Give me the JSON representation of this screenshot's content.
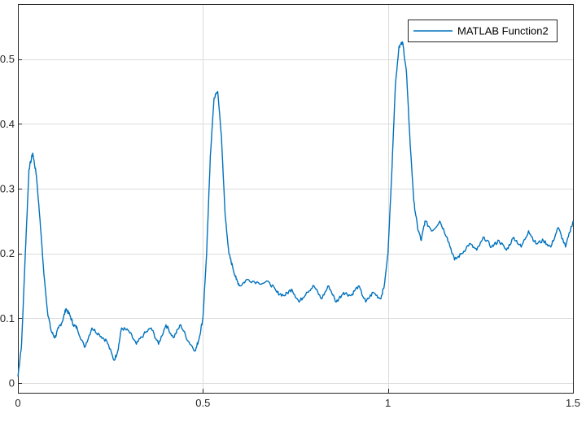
{
  "chart_data": {
    "type": "line",
    "title": "",
    "xlabel": "",
    "ylabel": "",
    "xlim": [
      0,
      1.5
    ],
    "ylim": [
      -0.015,
      0.585
    ],
    "x_ticks": [
      0,
      0.5,
      1,
      1.5
    ],
    "x_tick_labels": [
      "0",
      "0.5",
      "1",
      "1.5"
    ],
    "y_ticks": [
      0,
      0.1,
      0.2,
      0.3,
      0.4,
      0.5
    ],
    "y_tick_labels": [
      "0",
      "0.1",
      "0.2",
      "0.3",
      "0.4",
      "0.5"
    ],
    "grid": true,
    "legend_position": "top-right",
    "series": [
      {
        "name": "MATLAB Function2",
        "color": "#0072BD",
        "x": [
          0,
          0.01,
          0.02,
          0.03,
          0.04,
          0.05,
          0.06,
          0.07,
          0.08,
          0.09,
          0.1,
          0.11,
          0.12,
          0.13,
          0.14,
          0.15,
          0.16,
          0.18,
          0.2,
          0.22,
          0.24,
          0.26,
          0.27,
          0.28,
          0.3,
          0.32,
          0.34,
          0.36,
          0.38,
          0.4,
          0.42,
          0.44,
          0.46,
          0.48,
          0.49,
          0.5,
          0.51,
          0.52,
          0.53,
          0.54,
          0.55,
          0.56,
          0.57,
          0.58,
          0.59,
          0.6,
          0.62,
          0.65,
          0.68,
          0.7,
          0.72,
          0.74,
          0.76,
          0.78,
          0.8,
          0.82,
          0.84,
          0.86,
          0.88,
          0.9,
          0.92,
          0.94,
          0.96,
          0.98,
          0.99,
          1.0,
          1.01,
          1.02,
          1.03,
          1.04,
          1.05,
          1.06,
          1.07,
          1.08,
          1.09,
          1.1,
          1.12,
          1.14,
          1.16,
          1.18,
          1.2,
          1.22,
          1.24,
          1.26,
          1.28,
          1.3,
          1.32,
          1.34,
          1.36,
          1.38,
          1.4,
          1.42,
          1.44,
          1.46,
          1.48,
          1.5
        ],
        "y": [
          0.01,
          0.06,
          0.2,
          0.33,
          0.355,
          0.32,
          0.25,
          0.17,
          0.11,
          0.08,
          0.07,
          0.085,
          0.095,
          0.115,
          0.105,
          0.09,
          0.085,
          0.055,
          0.085,
          0.075,
          0.065,
          0.035,
          0.05,
          0.085,
          0.08,
          0.06,
          0.075,
          0.085,
          0.06,
          0.09,
          0.07,
          0.09,
          0.065,
          0.05,
          0.07,
          0.1,
          0.2,
          0.35,
          0.44,
          0.45,
          0.38,
          0.26,
          0.2,
          0.18,
          0.16,
          0.15,
          0.16,
          0.155,
          0.155,
          0.14,
          0.135,
          0.145,
          0.125,
          0.14,
          0.15,
          0.13,
          0.15,
          0.125,
          0.14,
          0.135,
          0.15,
          0.125,
          0.14,
          0.13,
          0.15,
          0.2,
          0.32,
          0.46,
          0.52,
          0.525,
          0.48,
          0.37,
          0.28,
          0.24,
          0.22,
          0.25,
          0.235,
          0.25,
          0.225,
          0.19,
          0.2,
          0.215,
          0.205,
          0.225,
          0.21,
          0.22,
          0.205,
          0.225,
          0.21,
          0.235,
          0.215,
          0.22,
          0.21,
          0.24,
          0.21,
          0.25
        ]
      }
    ]
  }
}
